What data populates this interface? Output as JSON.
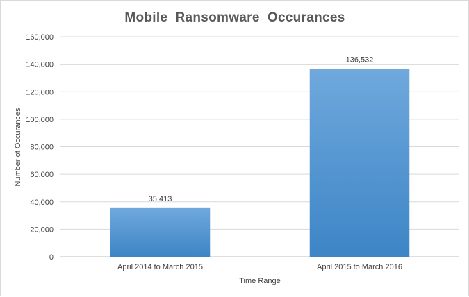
{
  "chart_data": {
    "type": "bar",
    "title": "Mobile  Ransomware  Occurances",
    "xlabel": "Time Range",
    "ylabel": "Number of Occurances",
    "categories": [
      "April 2014 to March 2015",
      "April 2015 to March 2016"
    ],
    "values": [
      35413,
      136532
    ],
    "data_labels": [
      "35,413",
      "136,532"
    ],
    "ylim": [
      0,
      160000
    ],
    "yticks": [
      0,
      20000,
      40000,
      60000,
      80000,
      100000,
      120000,
      140000,
      160000
    ],
    "ytick_labels": [
      "0",
      "20,000",
      "40,000",
      "60,000",
      "80,000",
      "100,000",
      "120,000",
      "140,000",
      "160,000"
    ],
    "grid": true,
    "legend": "none",
    "bar_color_top": "#6fa8dc",
    "bar_color_bottom": "#3d85c6"
  }
}
